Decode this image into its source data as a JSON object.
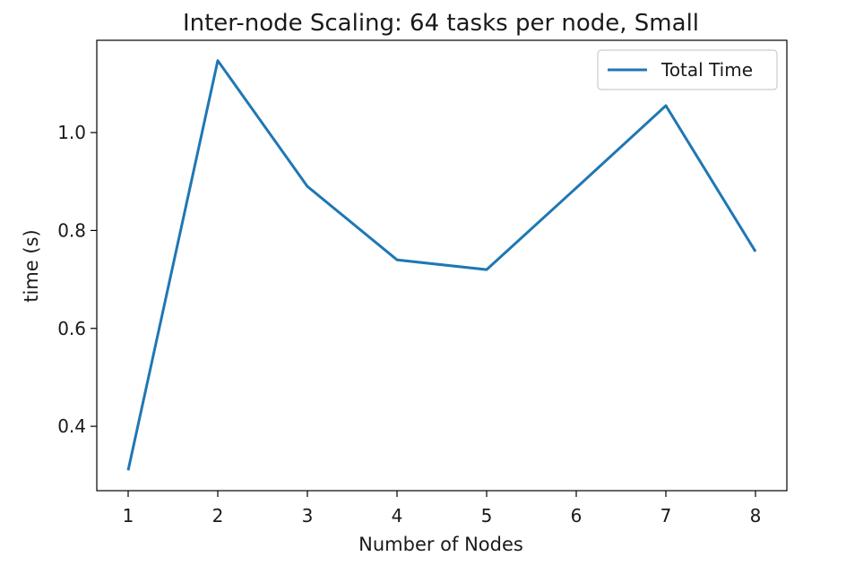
{
  "chart_data": {
    "type": "line",
    "title": "Inter-node Scaling: 64 tasks per node, Small",
    "xlabel": "Number of Nodes",
    "ylabel": "time (s)",
    "x": [
      1,
      2,
      3,
      4,
      5,
      6,
      7,
      8
    ],
    "series": [
      {
        "name": "Total Time",
        "color": "#1f77b4",
        "values": [
          0.31,
          1.147,
          0.89,
          0.74,
          0.72,
          0.887,
          1.055,
          0.757
        ]
      }
    ],
    "xticks": [
      1,
      2,
      3,
      4,
      5,
      6,
      7,
      8
    ],
    "yticks": [
      0.4,
      0.6,
      0.8,
      1.0
    ],
    "ytick_labels": [
      "0.4",
      "0.6",
      "0.8",
      "1.0"
    ],
    "xlim": [
      0.65,
      8.35
    ],
    "ylim": [
      0.2685,
      1.1885
    ],
    "grid": false,
    "legend_position": "top-right"
  }
}
